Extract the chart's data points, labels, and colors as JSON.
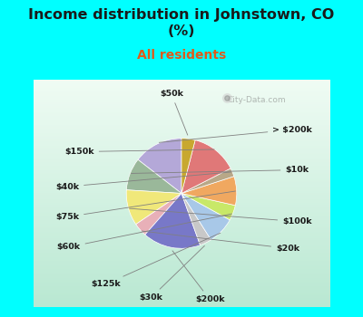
{
  "title": "Income distribution in Johnstown, CO\n(%)",
  "subtitle": "All residents",
  "title_color": "#1a1a1a",
  "subtitle_color": "#e05a1a",
  "bg_color": "#00ffff",
  "chart_bg_top": "#f0f8f0",
  "chart_bg_bottom": "#b8e8c8",
  "watermark": "City-Data.com",
  "labels": [
    "> $200k",
    "$10k",
    "$100k",
    "$20k",
    "$200k",
    "$30k",
    "$125k",
    "$60k",
    "$75k",
    "$40k",
    "$150k",
    "$50k"
  ],
  "sizes": [
    14.5,
    9.5,
    10.5,
    4.0,
    17.0,
    3.5,
    8.0,
    4.5,
    8.5,
    2.5,
    13.5,
    4.0
  ],
  "colors": [
    "#b4a8d8",
    "#9ab89a",
    "#f0e87a",
    "#e8b0b8",
    "#7878c8",
    "#c8c8c8",
    "#a8c8e8",
    "#c8e868",
    "#f0a860",
    "#b8a888",
    "#e07878",
    "#c8a830"
  ],
  "startangle": 90,
  "figsize": [
    4.0,
    3.5
  ],
  "dpi": 100
}
